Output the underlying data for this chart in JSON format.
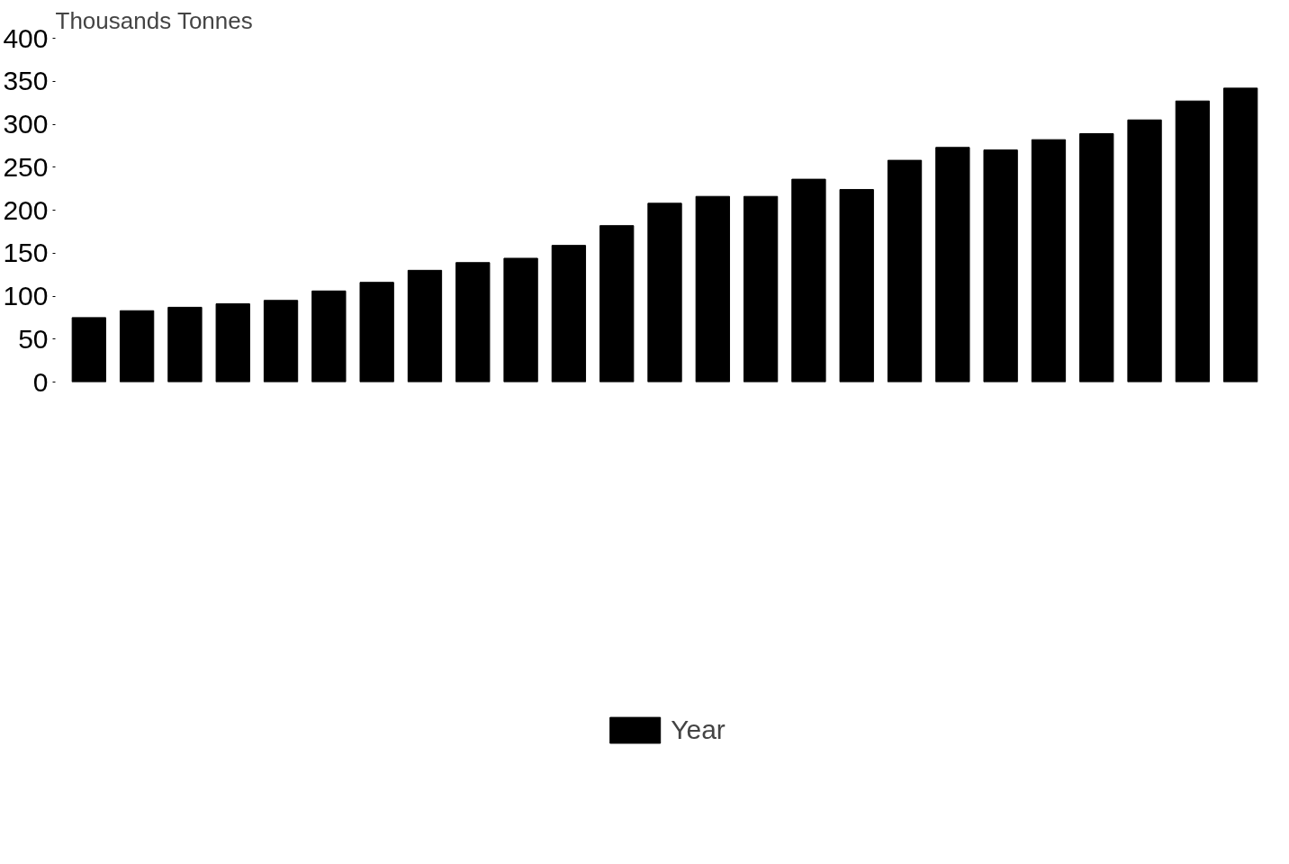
{
  "chart_data": {
    "type": "bar",
    "ylabel": "Thousands Tonnes",
    "categories": [
      null,
      null,
      null,
      null,
      null,
      null,
      null,
      null,
      null,
      null,
      null,
      null,
      null,
      null,
      null,
      null,
      null,
      null,
      null,
      null,
      null,
      null,
      null,
      null,
      null
    ],
    "series": [
      {
        "name": "Year",
        "color": "#000000",
        "values": [
          75,
          83,
          87,
          91,
          95,
          106,
          116,
          130,
          139,
          144,
          159,
          182,
          208,
          216,
          216,
          236,
          224,
          258,
          273,
          270,
          282,
          289,
          305,
          327,
          342
        ]
      }
    ],
    "ylim": [
      0,
      400
    ],
    "yticks": [
      0,
      50,
      100,
      150,
      200,
      250,
      300,
      350,
      400
    ],
    "grid": false,
    "legend": "bottom"
  }
}
